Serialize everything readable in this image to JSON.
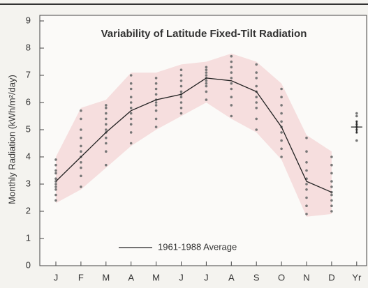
{
  "chart_data": {
    "type": "line",
    "title": "Variability of Latitude Fixed-Tilt Radiation",
    "ylabel": "Monthly Radiation (kWh/m²/day)",
    "categories": [
      "J",
      "F",
      "M",
      "A",
      "M",
      "J",
      "J",
      "A",
      "S",
      "O",
      "N",
      "D",
      "Yr"
    ],
    "ylim": [
      0,
      9
    ],
    "yticks": [
      0,
      1,
      2,
      3,
      4,
      5,
      6,
      7,
      8,
      9
    ],
    "series": [
      {
        "name": "1961-1988 Average",
        "color": "#222222",
        "values": [
          3.1,
          4.0,
          4.9,
          5.7,
          6.1,
          6.3,
          6.9,
          6.8,
          6.4,
          5.1,
          3.1,
          2.7,
          null
        ]
      }
    ],
    "annual_average": 5.1,
    "band": {
      "color": "#f6dede",
      "low": [
        2.3,
        2.8,
        3.6,
        4.4,
        5.0,
        5.5,
        6.0,
        5.4,
        4.9,
        3.9,
        1.8,
        1.9
      ],
      "high": [
        4.0,
        5.8,
        6.1,
        7.1,
        7.1,
        7.4,
        7.5,
        7.8,
        7.5,
        6.7,
        4.8,
        4.2
      ]
    },
    "points_color": "#777777",
    "points": [
      [
        2.4,
        2.6,
        2.8,
        2.9,
        3.0,
        3.1,
        3.2,
        3.4,
        3.5,
        3.7,
        3.9
      ],
      [
        2.9,
        3.3,
        3.6,
        3.8,
        4.0,
        4.2,
        4.4,
        4.7,
        5.0,
        5.4,
        5.7
      ],
      [
        3.7,
        4.2,
        4.5,
        4.7,
        4.9,
        5.0,
        5.2,
        5.4,
        5.6,
        5.8,
        5.9
      ],
      [
        4.5,
        4.9,
        5.2,
        5.4,
        5.6,
        5.8,
        6.0,
        6.2,
        6.5,
        6.7,
        7.0
      ],
      [
        5.1,
        5.4,
        5.7,
        5.9,
        6.0,
        6.1,
        6.3,
        6.5,
        6.7,
        6.9
      ],
      [
        5.6,
        5.8,
        6.0,
        6.2,
        6.3,
        6.4,
        6.6,
        6.8,
        7.0,
        7.2
      ],
      [
        6.1,
        6.4,
        6.6,
        6.7,
        6.8,
        6.9,
        7.0,
        7.1,
        7.2,
        7.3
      ],
      [
        5.5,
        5.9,
        6.2,
        6.5,
        6.7,
        6.9,
        7.1,
        7.3,
        7.5,
        7.7
      ],
      [
        5.0,
        5.4,
        5.8,
        6.0,
        6.2,
        6.4,
        6.6,
        6.9,
        7.1,
        7.4
      ],
      [
        4.0,
        4.3,
        4.6,
        4.9,
        5.1,
        5.3,
        5.6,
        5.9,
        6.2,
        6.5
      ],
      [
        1.9,
        2.2,
        2.5,
        2.8,
        3.0,
        3.2,
        3.5,
        3.8,
        4.2,
        4.7
      ],
      [
        2.0,
        2.2,
        2.4,
        2.6,
        2.7,
        2.9,
        3.1,
        3.4,
        3.7,
        4.0
      ],
      [
        4.6,
        4.9,
        5.0,
        5.1,
        5.2,
        5.3,
        5.5,
        5.6
      ]
    ]
  }
}
